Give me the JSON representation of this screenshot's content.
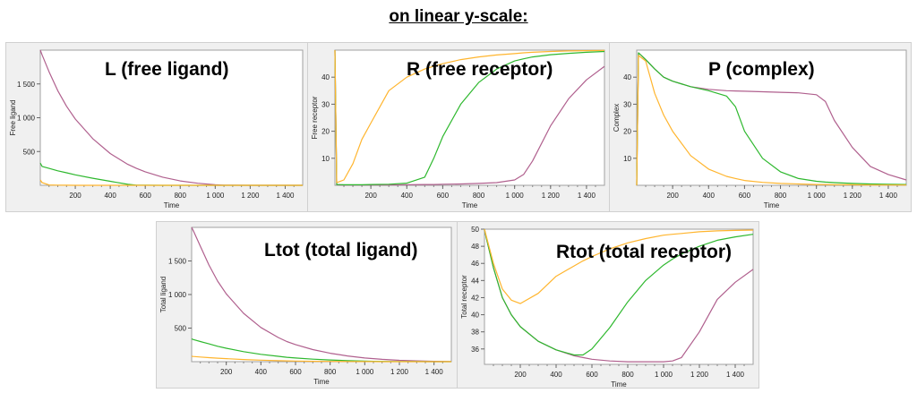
{
  "page": {
    "title": "on linear y-scale:"
  },
  "colors": {
    "purple": "#b0608e",
    "green": "#2eb82e",
    "orange": "#ffb52e"
  },
  "chart_data": [
    {
      "type": "line",
      "title": "L (free ligand)",
      "xlabel": "Time",
      "ylabel": "Free ligand",
      "xlim": [
        0,
        1500
      ],
      "ylim": [
        0,
        2000
      ],
      "grid": false,
      "xticks": [
        200,
        400,
        600,
        800,
        1000,
        1200,
        1400
      ],
      "xtick_labels": [
        "200",
        "400",
        "600",
        "800",
        "1 000",
        "1 200",
        "1 400"
      ],
      "yticks": [
        500,
        1000,
        1500
      ],
      "ytick_labels": [
        "500",
        "1 000",
        "1 500"
      ],
      "x": [
        0,
        10,
        50,
        100,
        150,
        200,
        300,
        400,
        500,
        550,
        600,
        700,
        800,
        900,
        1000,
        1050,
        1100,
        1200,
        1300,
        1400,
        1500
      ],
      "series": [
        {
          "color": "purple",
          "values": [
            2000,
            1930,
            1680,
            1400,
            1170,
            980,
            690,
            470,
            310,
            250,
            200,
            120,
            65,
            30,
            8,
            2,
            1,
            0,
            0,
            0,
            0
          ]
        },
        {
          "color": "green",
          "values": [
            330,
            280,
            250,
            215,
            185,
            155,
            105,
            60,
            15,
            3,
            1,
            0,
            0,
            0,
            0,
            0,
            0,
            0,
            0,
            0,
            0
          ]
        },
        {
          "color": "orange",
          "values": [
            80,
            40,
            5,
            2,
            1,
            0,
            0,
            0,
            0,
            0,
            0,
            0,
            0,
            0,
            0,
            0,
            0,
            0,
            0,
            0,
            0
          ]
        }
      ]
    },
    {
      "type": "line",
      "title": "R (free receptor)",
      "xlabel": "Time",
      "ylabel": "Free receptor",
      "xlim": [
        0,
        1500
      ],
      "ylim": [
        0,
        50
      ],
      "grid": false,
      "xticks": [
        200,
        400,
        600,
        800,
        1000,
        1200,
        1400
      ],
      "xtick_labels": [
        "200",
        "400",
        "600",
        "800",
        "1 000",
        "1 200",
        "1 400"
      ],
      "yticks": [
        10,
        20,
        30,
        40
      ],
      "ytick_labels": [
        "10",
        "20",
        "30",
        "40"
      ],
      "x": [
        0,
        10,
        50,
        100,
        150,
        200,
        300,
        400,
        500,
        550,
        600,
        700,
        800,
        900,
        1000,
        1050,
        1100,
        1200,
        1300,
        1400,
        1500
      ],
      "series": [
        {
          "color": "purple",
          "values": [
            50,
            0.2,
            0.1,
            0.1,
            0.1,
            0.1,
            0.1,
            0.2,
            0.3,
            0.3,
            0.4,
            0.5,
            0.7,
            1,
            2,
            4,
            9,
            22,
            32,
            39,
            44
          ]
        },
        {
          "color": "green",
          "values": [
            50,
            0.3,
            0.2,
            0.2,
            0.2,
            0.3,
            0.4,
            0.8,
            3,
            10,
            18,
            30,
            38,
            43,
            46,
            46.8,
            47.5,
            48.3,
            48.8,
            49.2,
            49.5
          ]
        },
        {
          "color": "orange",
          "values": [
            50,
            1,
            2,
            8,
            17,
            23,
            35,
            40,
            43,
            44,
            45,
            46.5,
            47.5,
            48.2,
            48.7,
            49,
            49.2,
            49.5,
            49.7,
            49.8,
            49.9
          ]
        }
      ]
    },
    {
      "type": "line",
      "title": "P (complex)",
      "xlabel": "Time",
      "ylabel": "Complex",
      "xlim": [
        0,
        1500
      ],
      "ylim": [
        0,
        50
      ],
      "grid": false,
      "xticks": [
        200,
        400,
        600,
        800,
        1000,
        1200,
        1400
      ],
      "xtick_labels": [
        "200",
        "400",
        "600",
        "800",
        "1 000",
        "1 200",
        "1 400"
      ],
      "yticks": [
        10,
        20,
        30,
        40
      ],
      "ytick_labels": [
        "10",
        "20",
        "30",
        "40"
      ],
      "x": [
        0,
        10,
        50,
        100,
        150,
        200,
        300,
        400,
        500,
        550,
        600,
        700,
        800,
        900,
        1000,
        1050,
        1100,
        1200,
        1300,
        1400,
        1500
      ],
      "series": [
        {
          "color": "purple",
          "values": [
            0,
            49,
            46.5,
            43,
            40,
            38.5,
            36.5,
            35.5,
            35,
            34.9,
            34.8,
            34.6,
            34.4,
            34.2,
            33.5,
            31,
            24,
            14,
            7,
            4,
            2
          ]
        },
        {
          "color": "green",
          "values": [
            0,
            49,
            46.5,
            43,
            40,
            38.5,
            36.5,
            35,
            33,
            29,
            20,
            10,
            5,
            2.5,
            1.5,
            1.2,
            1,
            0.7,
            0.5,
            0.4,
            0.3
          ]
        },
        {
          "color": "orange",
          "values": [
            0,
            48,
            46,
            34,
            26,
            20,
            11,
            6,
            3.3,
            2.5,
            1.8,
            1.1,
            0.7,
            0.5,
            0.3,
            0.3,
            0.2,
            0.2,
            0.1,
            0.1,
            0.1
          ]
        }
      ]
    },
    {
      "type": "line",
      "title": "Ltot (total ligand)",
      "xlabel": "Time",
      "ylabel": "Total ligand",
      "xlim": [
        0,
        1500
      ],
      "ylim": [
        0,
        2000
      ],
      "grid": false,
      "xticks": [
        200,
        400,
        600,
        800,
        1000,
        1200,
        1400
      ],
      "xtick_labels": [
        "200",
        "400",
        "600",
        "800",
        "1 000",
        "1 200",
        "1 400"
      ],
      "yticks": [
        500,
        1000,
        1500
      ],
      "ytick_labels": [
        "500",
        "1 000",
        "1 500"
      ],
      "x": [
        0,
        10,
        50,
        100,
        150,
        200,
        300,
        400,
        500,
        550,
        600,
        700,
        800,
        900,
        1000,
        1050,
        1100,
        1200,
        1300,
        1400,
        1500
      ],
      "series": [
        {
          "color": "purple",
          "values": [
            2000,
            1950,
            1720,
            1440,
            1200,
            1010,
            720,
            510,
            360,
            300,
            255,
            180,
            125,
            85,
            55,
            45,
            35,
            20,
            12,
            6,
            3
          ]
        },
        {
          "color": "green",
          "values": [
            340,
            330,
            300,
            265,
            230,
            200,
            150,
            110,
            80,
            65,
            55,
            38,
            25,
            15,
            8,
            6,
            4,
            2,
            1,
            0,
            0
          ]
        },
        {
          "color": "orange",
          "values": [
            80,
            78,
            70,
            60,
            52,
            45,
            32,
            22,
            15,
            12,
            10,
            6,
            4,
            2,
            1,
            1,
            0,
            0,
            0,
            0,
            0
          ]
        }
      ]
    },
    {
      "type": "line",
      "title": "Rtot (total receptor)",
      "xlabel": "Time",
      "ylabel": "Total receptor",
      "xlim": [
        0,
        1500
      ],
      "ylim": [
        34.2,
        50
      ],
      "grid": false,
      "xticks": [
        200,
        400,
        600,
        800,
        1000,
        1200,
        1400
      ],
      "xtick_labels": [
        "200",
        "400",
        "600",
        "800",
        "1 000",
        "1 200",
        "1 400"
      ],
      "yticks": [
        36,
        38,
        40,
        42,
        44,
        46,
        48,
        50
      ],
      "ytick_labels": [
        "36",
        "38",
        "40",
        "42",
        "44",
        "46",
        "48",
        "50"
      ],
      "x": [
        0,
        10,
        50,
        100,
        150,
        200,
        300,
        400,
        500,
        550,
        600,
        700,
        800,
        900,
        1000,
        1050,
        1100,
        1200,
        1300,
        1400,
        1500
      ],
      "series": [
        {
          "color": "purple",
          "values": [
            50,
            49,
            45.5,
            42,
            40,
            38.6,
            36.9,
            35.9,
            35.2,
            35,
            34.8,
            34.6,
            34.5,
            34.5,
            34.5,
            34.6,
            35,
            38,
            41.8,
            43.8,
            45.3
          ]
        },
        {
          "color": "green",
          "values": [
            50,
            49,
            45.5,
            42,
            40,
            38.6,
            36.9,
            35.9,
            35.3,
            35.3,
            36,
            38.5,
            41.5,
            44,
            45.8,
            46.5,
            47.1,
            48,
            48.7,
            49.1,
            49.4
          ]
        },
        {
          "color": "orange",
          "values": [
            50,
            49.2,
            46,
            43,
            41.7,
            41.3,
            42.5,
            44.5,
            45.7,
            46.3,
            46.8,
            47.7,
            48.4,
            48.9,
            49.3,
            49.4,
            49.5,
            49.7,
            49.8,
            49.85,
            49.9
          ]
        }
      ]
    }
  ]
}
